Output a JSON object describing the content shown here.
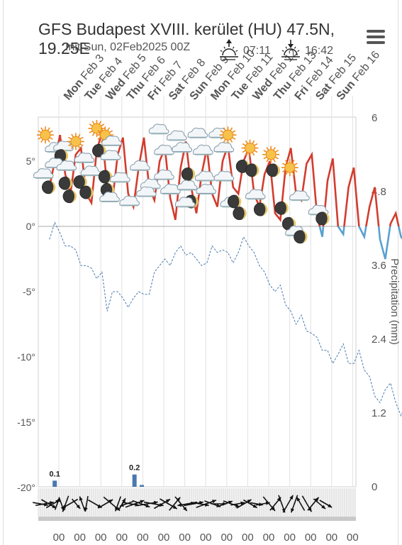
{
  "header": {
    "title": "GFS Budapest XVIII. kerület (HU) 47.5N, 19.25E",
    "init_label": "Init Sun, 02Feb2025 00Z",
    "sunrise": "07:11",
    "sunset": "16:42",
    "menu_icon": "hamburger-menu-icon"
  },
  "chart_data": {
    "type": "line",
    "days": [
      "Mon Feb 3",
      "Tue Feb 4",
      "Wed Feb 5",
      "Thu Feb 6",
      "Fri Feb 7",
      "Sat Feb 8",
      "Sun Feb 9",
      "Mon Feb 10",
      "Tue Feb 11",
      "Wed Feb 12",
      "Thu Feb 13",
      "Fri Feb 14",
      "Sat Feb 15",
      "Sun Feb 16"
    ],
    "hour_labels": [
      "00",
      "00",
      "00",
      "00",
      "00",
      "00",
      "00",
      "00",
      "00",
      "00",
      "00",
      "00",
      "00",
      "00",
      "00"
    ],
    "left_axis": {
      "ticks": [
        "5°",
        "0°",
        "-5°",
        "-10°",
        "-15°",
        "-20°"
      ],
      "values": [
        5,
        0,
        -5,
        -10,
        -15,
        -20
      ],
      "ylim": [
        -20,
        8.5
      ]
    },
    "right_axis": {
      "label": "Precipitation (mm)",
      "ticks": [
        "6",
        "4.8",
        "3.6",
        "2.4",
        "1.2",
        "0"
      ],
      "values": [
        6,
        4.8,
        3.6,
        2.4,
        1.2,
        0
      ],
      "ylim": [
        0,
        6
      ]
    },
    "series": [
      {
        "kind": "temperature",
        "color": "#d33c2e",
        "cold_color": "#5aa0d0",
        "t0": 0.5,
        "step": 0.25,
        "values": [
          3.0,
          5.0,
          7.0,
          4.0,
          2.5,
          5.5,
          6.0,
          2.5,
          1.8,
          5.8,
          7.2,
          3.0,
          2.0,
          5.5,
          6.8,
          2.5,
          1.5,
          4.5,
          6.8,
          3.0,
          2.0,
          5.0,
          6.0,
          2.2,
          0.5,
          4.5,
          6.5,
          3.0,
          1.0,
          4.0,
          6.0,
          2.5,
          1.5,
          5.0,
          6.2,
          3.0,
          2.5,
          5.0,
          6.0,
          2.5,
          1.5,
          4.0,
          5.0,
          1.0,
          0.5,
          4.5,
          6.0,
          2.5,
          2.0,
          4.8,
          5.5,
          0.8,
          -0.8,
          3.5,
          5.2,
          0.0,
          -0.6,
          3.0,
          4.5,
          0.0,
          -0.8,
          1.5,
          3.0,
          -1.0,
          -2.5,
          0.2,
          1.0,
          -0.8,
          -1.3
        ]
      },
      {
        "kind": "dewpoint",
        "color": "#4a7ab0",
        "t0": 0.5,
        "step": 0.25,
        "values": [
          -1.0,
          0.3,
          -0.5,
          -1.5,
          -1.5,
          -1.8,
          -3.0,
          -3.0,
          -3.2,
          -4.0,
          -3.5,
          -6.5,
          -5.0,
          -5.0,
          -5.5,
          -6.2,
          -5.5,
          -5.0,
          -5.2,
          -5.2,
          -3.5,
          -3.0,
          -2.5,
          -3.0,
          -2.0,
          -1.5,
          -2.2,
          -2.0,
          -2.5,
          -3.0,
          -2.8,
          -1.5,
          -2.0,
          -1.8,
          -2.0,
          -2.8,
          -2.0,
          -0.8,
          -1.5,
          -2.0,
          -3.0,
          -3.5,
          -4.5,
          -5.0,
          -4.5,
          -6.0,
          -6.5,
          -7.5,
          -6.8,
          -8.0,
          -8.2,
          -8.5,
          -9.5,
          -9.5,
          -10.5,
          -9.8,
          -9.0,
          -10.5,
          -10.5,
          -9.5,
          -11.0,
          -11.5,
          -13.0,
          -13.5,
          -12.5,
          -12.0,
          -13.5,
          -14.5,
          -13.5
        ]
      },
      {
        "kind": "precipitation",
        "color": "#4a78b0",
        "unit": "mm",
        "bars": [
          {
            "x": 0.75,
            "value": 0.1,
            "label": "0.1"
          },
          {
            "x": 4.55,
            "value": 0.2,
            "label": "0.2"
          },
          {
            "x": 4.9,
            "value": 0.03,
            "label": ""
          }
        ]
      }
    ]
  },
  "icons": [
    {
      "x": 0.1,
      "y": 7.0,
      "name": "sun-icon",
      "type": "sun"
    },
    {
      "x": 0.0,
      "y": 4.0,
      "name": "cloud-icon",
      "type": "cloud"
    },
    {
      "x": 0.55,
      "y": 6.0,
      "name": "cloud-icon",
      "type": "cloud"
    },
    {
      "x": 0.95,
      "y": 6.1,
      "name": "cloud-icon",
      "type": "cloud"
    },
    {
      "x": 0.85,
      "y": 5.4,
      "name": "moon-icon",
      "type": "moon"
    },
    {
      "x": 0.55,
      "y": 4.8,
      "name": "cloud-icon",
      "type": "cloud"
    },
    {
      "x": 1.1,
      "y": 4.6,
      "name": "cloud-icon",
      "type": "cloud"
    },
    {
      "x": 0.25,
      "y": 3.0,
      "name": "moon-icon",
      "type": "moon"
    },
    {
      "x": 1.05,
      "y": 3.3,
      "name": "moon-icon",
      "type": "moon"
    },
    {
      "x": 1.25,
      "y": 2.3,
      "name": "moon-icon",
      "type": "moon"
    },
    {
      "x": 1.55,
      "y": 6.5,
      "name": "sun-icon",
      "type": "sun"
    },
    {
      "x": 1.95,
      "y": 5.2,
      "name": "cloud-icon",
      "type": "cloud"
    },
    {
      "x": 2.55,
      "y": 7.5,
      "name": "sun-icon",
      "type": "sun"
    },
    {
      "x": 2.65,
      "y": 5.8,
      "name": "moon-icon",
      "type": "moon"
    },
    {
      "x": 1.75,
      "y": 3.4,
      "name": "moon-icon",
      "type": "moon"
    },
    {
      "x": 2.05,
      "y": 2.6,
      "name": "moon-icon",
      "type": "moon"
    },
    {
      "x": 2.25,
      "y": 4.2,
      "name": "cloud-icon",
      "type": "cloud"
    },
    {
      "x": 2.95,
      "y": 7.0,
      "name": "sun-icon",
      "type": "sun"
    },
    {
      "x": 3.25,
      "y": 6.5,
      "name": "cloud-icon",
      "type": "cloud"
    },
    {
      "x": 3.2,
      "y": 5.4,
      "name": "cloud-icon",
      "type": "cloud"
    },
    {
      "x": 2.95,
      "y": 3.8,
      "name": "moon-icon",
      "type": "moon"
    },
    {
      "x": 3.05,
      "y": 2.8,
      "name": "moon-icon",
      "type": "moon"
    },
    {
      "x": 3.15,
      "y": 2.2,
      "name": "cloud-icon",
      "type": "cloud"
    },
    {
      "x": 3.65,
      "y": 3.7,
      "name": "cloud-icon",
      "type": "cloud"
    },
    {
      "x": 4.1,
      "y": 1.9,
      "name": "cloud-icon",
      "type": "cloud"
    },
    {
      "x": 4.6,
      "y": 4.6,
      "name": "cloud-icon",
      "type": "cloud"
    },
    {
      "x": 5.1,
      "y": 3.2,
      "name": "cloud-icon",
      "type": "cloud"
    },
    {
      "x": 4.9,
      "y": 2.6,
      "name": "cloud-icon",
      "type": "cloud"
    },
    {
      "x": 5.5,
      "y": 7.4,
      "name": "cloud-icon",
      "type": "cloud"
    },
    {
      "x": 5.75,
      "y": 5.8,
      "name": "cloud-icon",
      "type": "cloud"
    },
    {
      "x": 5.75,
      "y": 3.9,
      "name": "cloud-icon",
      "type": "cloud"
    },
    {
      "x": 6.05,
      "y": 2.8,
      "name": "cloud-icon",
      "type": "cloud"
    },
    {
      "x": 6.35,
      "y": 6.9,
      "name": "cloud-icon",
      "type": "cloud"
    },
    {
      "x": 6.6,
      "y": 6.0,
      "name": "cloud-icon",
      "type": "cloud"
    },
    {
      "x": 6.9,
      "y": 4.0,
      "name": "moon-icon",
      "type": "moon"
    },
    {
      "x": 6.85,
      "y": 3.1,
      "name": "cloud-icon",
      "type": "cloud"
    },
    {
      "x": 7.05,
      "y": 1.9,
      "name": "moon-icon",
      "type": "moon"
    },
    {
      "x": 6.75,
      "y": 1.8,
      "name": "cloud-icon",
      "type": "cloud"
    },
    {
      "x": 7.35,
      "y": 7.1,
      "name": "cloud-icon",
      "type": "cloud"
    },
    {
      "x": 7.6,
      "y": 5.8,
      "name": "cloud-icon",
      "type": "cloud"
    },
    {
      "x": 7.7,
      "y": 3.8,
      "name": "cloud-icon",
      "type": "cloud"
    },
    {
      "x": 7.75,
      "y": 2.8,
      "name": "cloud-icon",
      "type": "cloud"
    },
    {
      "x": 8.35,
      "y": 7.1,
      "name": "cloud-icon",
      "type": "cloud"
    },
    {
      "x": 8.6,
      "y": 6.0,
      "name": "cloud-icon",
      "type": "cloud"
    },
    {
      "x": 8.8,
      "y": 7.0,
      "name": "sun-icon",
      "type": "sun"
    },
    {
      "x": 8.6,
      "y": 3.8,
      "name": "cloud-icon",
      "type": "cloud"
    },
    {
      "x": 8.9,
      "y": 1.8,
      "name": "cloud-icon",
      "type": "cloud"
    },
    {
      "x": 9.1,
      "y": 1.9,
      "name": "moon-icon",
      "type": "moon"
    },
    {
      "x": 9.35,
      "y": 1.0,
      "name": "moon-icon",
      "type": "moon"
    },
    {
      "x": 9.5,
      "y": 4.6,
      "name": "moon-icon",
      "type": "moon"
    },
    {
      "x": 9.85,
      "y": 6.0,
      "name": "sun-icon",
      "type": "sun"
    },
    {
      "x": 9.95,
      "y": 4.3,
      "name": "moon-icon",
      "type": "moon"
    },
    {
      "x": 10.1,
      "y": 2.4,
      "name": "cloud-icon",
      "type": "cloud"
    },
    {
      "x": 10.35,
      "y": 1.3,
      "name": "moon-icon",
      "type": "moon"
    },
    {
      "x": 10.85,
      "y": 5.5,
      "name": "sun-icon",
      "type": "sun"
    },
    {
      "x": 10.95,
      "y": 4.3,
      "name": "moon-icon",
      "type": "moon"
    },
    {
      "x": 11.35,
      "y": 1.4,
      "name": "moon-icon",
      "type": "moon"
    },
    {
      "x": 11.7,
      "y": 0.2,
      "name": "moon-icon",
      "type": "moon"
    },
    {
      "x": 11.75,
      "y": 4.5,
      "name": "sun-icon",
      "type": "sun"
    },
    {
      "x": 12.2,
      "y": 2.3,
      "name": "cloud-icon",
      "type": "cloud"
    },
    {
      "x": 12.0,
      "y": -0.4,
      "name": "cloud-icon",
      "type": "cloud"
    },
    {
      "x": 12.25,
      "y": -0.8,
      "name": "moon-icon",
      "type": "moon"
    },
    {
      "x": 13.1,
      "y": 1.2,
      "name": "cloud-icon",
      "type": "cloud"
    },
    {
      "x": 13.3,
      "y": 0.6,
      "name": "moon-icon",
      "type": "moon"
    }
  ],
  "wind": [
    {
      "x": 0.0,
      "dir": 100,
      "len": 22
    },
    {
      "x": 0.2,
      "dir": 80,
      "len": 26
    },
    {
      "x": 0.4,
      "dir": 120,
      "len": 24
    },
    {
      "x": 0.6,
      "dir": 60,
      "len": 22
    },
    {
      "x": 0.8,
      "dir": 20,
      "len": 18
    },
    {
      "x": 1.0,
      "dir": 160,
      "len": 20
    },
    {
      "x": 1.2,
      "dir": 200,
      "len": 24
    },
    {
      "x": 1.4,
      "dir": 240,
      "len": 26
    },
    {
      "x": 1.7,
      "dir": 140,
      "len": 18
    },
    {
      "x": 2.0,
      "dir": 340,
      "len": 22
    },
    {
      "x": 2.2,
      "dir": 190,
      "len": 22
    },
    {
      "x": 2.6,
      "dir": 120,
      "len": 22
    },
    {
      "x": 3.1,
      "dir": 60,
      "len": 24
    },
    {
      "x": 3.4,
      "dir": 130,
      "len": 30
    },
    {
      "x": 3.7,
      "dir": 200,
      "len": 22
    },
    {
      "x": 3.9,
      "dir": 30,
      "len": 18
    },
    {
      "x": 4.1,
      "dir": 250,
      "len": 20
    },
    {
      "x": 4.3,
      "dir": 100,
      "len": 24
    },
    {
      "x": 4.5,
      "dir": 70,
      "len": 28
    },
    {
      "x": 4.8,
      "dir": 110,
      "len": 26
    },
    {
      "x": 5.1,
      "dir": 80,
      "len": 30
    },
    {
      "x": 5.4,
      "dir": 100,
      "len": 28
    },
    {
      "x": 5.8,
      "dir": 60,
      "len": 26
    },
    {
      "x": 6.1,
      "dir": 120,
      "len": 28
    },
    {
      "x": 6.4,
      "dir": 40,
      "len": 24
    },
    {
      "x": 6.7,
      "dir": 140,
      "len": 26
    },
    {
      "x": 7.0,
      "dir": 260,
      "len": 28
    },
    {
      "x": 7.3,
      "dir": 80,
      "len": 28
    },
    {
      "x": 7.6,
      "dir": 100,
      "len": 26
    },
    {
      "x": 7.9,
      "dir": 70,
      "len": 30
    },
    {
      "x": 8.2,
      "dir": 110,
      "len": 24
    },
    {
      "x": 8.5,
      "dir": 90,
      "len": 22
    },
    {
      "x": 8.8,
      "dir": 70,
      "len": 22
    },
    {
      "x": 9.1,
      "dir": 110,
      "len": 24
    },
    {
      "x": 9.4,
      "dir": 80,
      "len": 20
    },
    {
      "x": 9.7,
      "dir": 60,
      "len": 24
    },
    {
      "x": 10.0,
      "dir": 120,
      "len": 22
    },
    {
      "x": 10.3,
      "dir": 100,
      "len": 18
    },
    {
      "x": 10.6,
      "dir": 80,
      "len": 20
    },
    {
      "x": 10.9,
      "dir": 140,
      "len": 26
    },
    {
      "x": 11.2,
      "dir": 40,
      "len": 24
    },
    {
      "x": 11.5,
      "dir": 160,
      "len": 26
    },
    {
      "x": 11.8,
      "dir": 30,
      "len": 28
    },
    {
      "x": 12.1,
      "dir": 200,
      "len": 26
    },
    {
      "x": 12.4,
      "dir": 330,
      "len": 22
    },
    {
      "x": 12.7,
      "dir": 150,
      "len": 26
    },
    {
      "x": 13.0,
      "dir": 40,
      "len": 24
    },
    {
      "x": 13.3,
      "dir": 130,
      "len": 22
    },
    {
      "x": 13.6,
      "dir": 120,
      "len": 20
    }
  ]
}
